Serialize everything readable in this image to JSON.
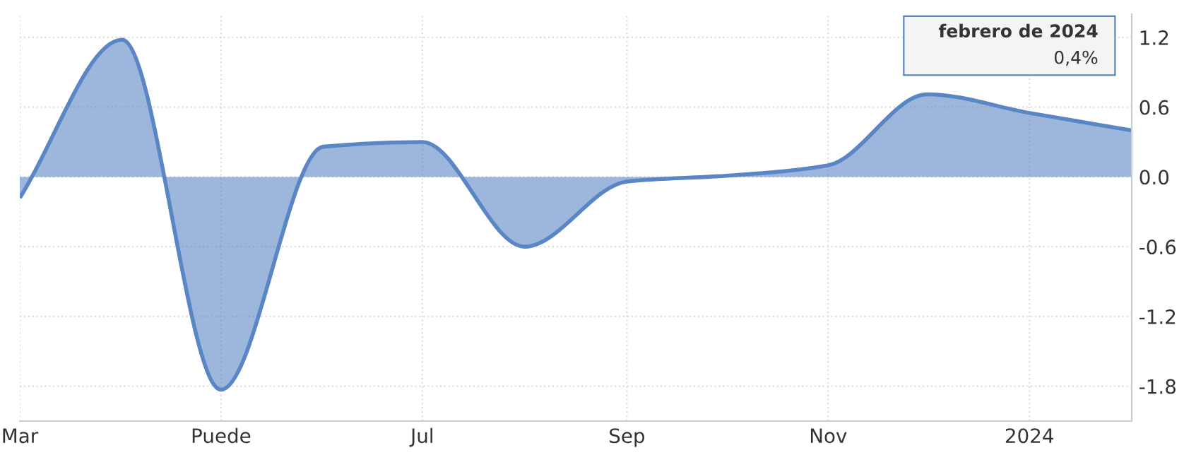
{
  "chart_data": {
    "type": "area",
    "x": [
      "2023-03",
      "2023-04",
      "2023-05",
      "2023-06",
      "2023-07",
      "2023-08",
      "2023-09",
      "2023-10",
      "2023-11",
      "2023-12",
      "2024-01",
      "2024-02"
    ],
    "series": [
      {
        "color": "#5b86c5",
        "values": [
          -0.18,
          1.18,
          -1.83,
          0.26,
          0.3,
          -0.6,
          -0.04,
          0.01,
          0.1,
          0.71,
          0.55,
          0.4
        ]
      }
    ],
    "xlim": [
      "2023-03",
      "2024-02"
    ],
    "xticks": [
      {
        "value": "2023-03",
        "label": "Mar"
      },
      {
        "value": "2023-05",
        "label": "Puede"
      },
      {
        "value": "2023-07",
        "label": "Jul"
      },
      {
        "value": "2023-09",
        "label": "Sep"
      },
      {
        "value": "2023-11",
        "label": "Nov"
      },
      {
        "value": "2024-01",
        "label": "2024"
      }
    ],
    "ylim": [
      -2.1,
      1.4
    ],
    "yticks": [
      {
        "value": -1.8,
        "label": "-1.8"
      },
      {
        "value": -1.2,
        "label": "-1.2"
      },
      {
        "value": -0.6,
        "label": "-0.6"
      },
      {
        "value": 0,
        "label": "0.0"
      },
      {
        "value": 0.6,
        "label": "0.6"
      },
      {
        "value": 1.2,
        "label": "1.2"
      }
    ],
    "grid": true,
    "legend": false,
    "annotations": [
      "febrero de 2024",
      "0,4%"
    ]
  }
}
